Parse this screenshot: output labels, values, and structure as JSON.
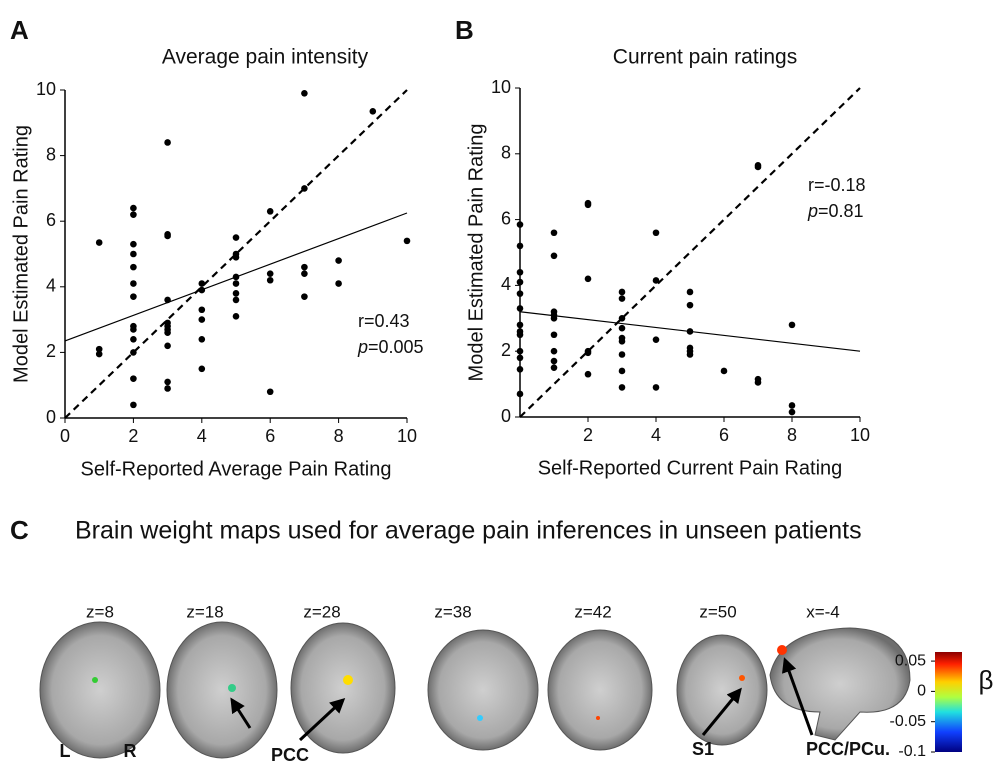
{
  "chart_data": [
    {
      "type": "scatter",
      "label": "A",
      "title": "Average pain intensity",
      "xlabel": "Self-Reported Average Pain Rating",
      "ylabel": "Model Estimated Pain Rating",
      "xlim": [
        0,
        10
      ],
      "ylim": [
        0,
        10
      ],
      "xticks": [
        0,
        2,
        4,
        6,
        8,
        10
      ],
      "yticks": [
        0,
        2,
        4,
        6,
        8,
        10
      ],
      "color": "#000000",
      "series": [
        {
          "x": [
            1,
            1,
            1,
            2,
            2,
            2,
            2,
            2,
            2,
            2,
            2,
            2,
            2,
            2,
            2,
            2,
            3,
            3,
            3,
            3,
            3,
            3,
            3,
            3,
            3,
            3,
            3,
            4,
            4,
            4,
            4,
            4,
            4,
            5,
            5,
            5,
            5,
            5,
            5,
            5,
            5,
            6,
            6,
            6,
            6,
            7,
            7,
            7,
            7,
            7,
            8,
            8,
            9,
            10
          ],
          "values": [
            5.35,
            2.1,
            1.95,
            6.4,
            6.2,
            5.3,
            5.0,
            4.6,
            4.1,
            3.7,
            2.8,
            2.7,
            2.4,
            2.0,
            1.2,
            0.4,
            8.4,
            5.6,
            5.55,
            3.6,
            2.9,
            2.8,
            2.7,
            2.6,
            2.2,
            1.1,
            0.9,
            4.1,
            3.9,
            3.3,
            3.0,
            2.4,
            1.5,
            5.5,
            5.0,
            4.9,
            4.3,
            4.1,
            3.8,
            3.6,
            3.1,
            6.3,
            4.4,
            4.2,
            0.8,
            9.9,
            7.0,
            4.6,
            4.4,
            3.7,
            4.8,
            4.1,
            9.35,
            5.4
          ]
        }
      ],
      "lines": [
        {
          "style": "solid",
          "x": [
            0,
            10
          ],
          "y": [
            2.35,
            6.25
          ]
        },
        {
          "style": "dashed",
          "x": [
            0,
            10
          ],
          "y": [
            0,
            10
          ]
        }
      ],
      "stats": {
        "r": "r=0.43",
        "p_symbol": "p",
        "p_value": "=0.005"
      }
    },
    {
      "type": "scatter",
      "label": "B",
      "title": "Current pain ratings",
      "xlabel": "Self-Reported Current Pain Rating",
      "ylabel": "Model Estimated Pain Rating",
      "xlim": [
        0,
        10
      ],
      "ylim": [
        0,
        10
      ],
      "xticks": [
        2,
        4,
        6,
        8,
        10
      ],
      "yticks": [
        0,
        2,
        4,
        6,
        8,
        10
      ],
      "color": "#000000",
      "series": [
        {
          "x": [
            0,
            0,
            0,
            0,
            0,
            0,
            0,
            0,
            0,
            0,
            0,
            0,
            0,
            1,
            1,
            1,
            1,
            1,
            1,
            1,
            1,
            1,
            2,
            2,
            2,
            2,
            2,
            2,
            3,
            3,
            3,
            3,
            3,
            3,
            3,
            3,
            3,
            4,
            4,
            4,
            4,
            5,
            5,
            5,
            5,
            5,
            5,
            6,
            7,
            7,
            7,
            7,
            8,
            8,
            8
          ],
          "values": [
            5.85,
            5.2,
            4.4,
            4.1,
            3.75,
            3.3,
            2.8,
            2.6,
            2.5,
            2.0,
            1.8,
            1.45,
            0.7,
            5.6,
            4.9,
            3.2,
            3.1,
            3.0,
            2.5,
            2.0,
            1.7,
            1.5,
            6.5,
            6.45,
            4.2,
            2.0,
            1.95,
            1.3,
            3.8,
            3.6,
            3.0,
            2.7,
            2.4,
            2.3,
            1.9,
            1.4,
            0.9,
            5.6,
            4.15,
            2.35,
            0.9,
            3.8,
            3.4,
            2.6,
            2.1,
            2.0,
            1.9,
            1.4,
            7.65,
            7.6,
            1.15,
            1.05,
            2.8,
            0.35,
            0.15
          ]
        }
      ],
      "lines": [
        {
          "style": "solid",
          "x": [
            0,
            10
          ],
          "y": [
            3.2,
            2.0
          ]
        },
        {
          "style": "dashed",
          "x": [
            0,
            10
          ],
          "y": [
            0,
            10
          ]
        }
      ],
      "stats": {
        "r": "r=-0.18",
        "p_symbol": "p",
        "p_value": "=0.81"
      }
    }
  ],
  "brain_maps": {
    "label": "C",
    "title": "Brain weight maps used for average pain inferences in unseen patients",
    "slices": [
      "z=8",
      "z=18",
      "z=28",
      "z=38",
      "z=42",
      "z=50",
      "x=-4"
    ],
    "annotations": [
      "L",
      "R",
      "PCC",
      "S1",
      "PCC/PCu."
    ],
    "colorbar": {
      "label": "β",
      "lim": [
        -0.1,
        0.065
      ],
      "ticks": [
        0.05,
        0,
        -0.05,
        -0.1
      ]
    }
  }
}
